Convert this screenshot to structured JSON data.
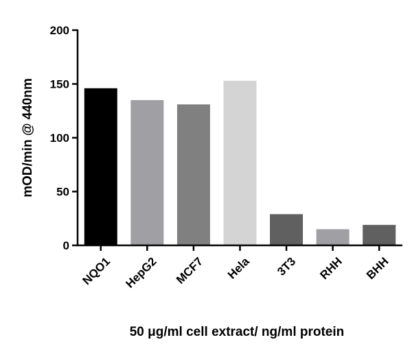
{
  "chart_data": {
    "type": "bar",
    "xlabel": "50 μg/ml cell extract/ ng/ml protein",
    "ylabel": "mOD/min @ 440nm",
    "categories": [
      "NQO1",
      "HepG2",
      "MCF7",
      "Hela",
      "3T3",
      "RHH",
      "BHH"
    ],
    "values": [
      146,
      135,
      131,
      153,
      29,
      15,
      19
    ],
    "colors": [
      "#000000",
      "#a0a0a4",
      "#808080",
      "#d4d4d4",
      "#606060",
      "#a0a0a4",
      "#606060"
    ],
    "ylim": [
      0,
      200
    ],
    "yticks": [
      0,
      50,
      100,
      150,
      200
    ],
    "grid": false
  }
}
